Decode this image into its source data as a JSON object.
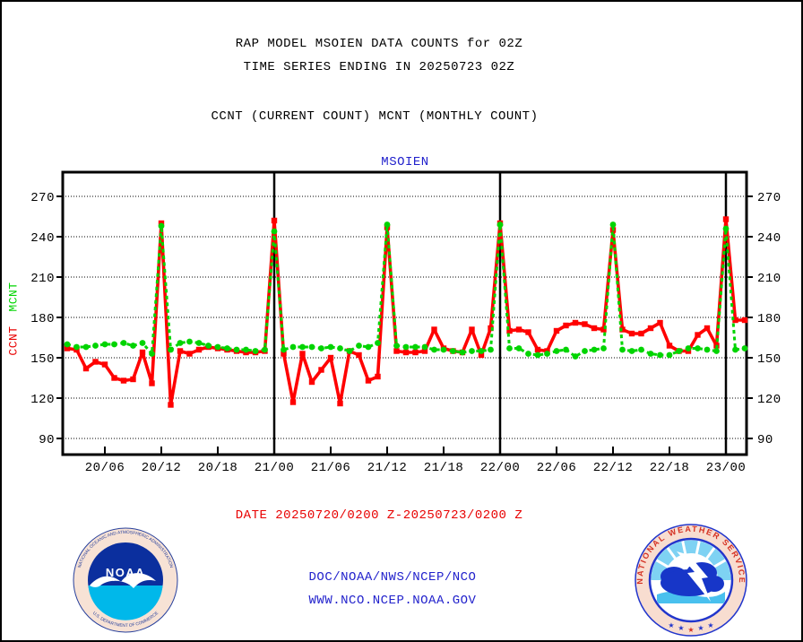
{
  "titles": {
    "line1": "RAP MODEL MSOIEN DATA COUNTS for 02Z",
    "line2": "TIME SERIES ENDING IN 20250723 02Z",
    "counts_caption": "CCNT (CURRENT COUNT) MCNT (MONTHLY COUNT)"
  },
  "axis_labels": {
    "ccnt": "CCNT",
    "mcnt": "MCNT"
  },
  "date_caption": "DATE 20250720/0200 Z-20250723/0200 Z",
  "footer": {
    "org": "DOC/NOAA/NWS/NCEP/NCO",
    "url": "WWW.NCO.NCEP.NOAA.GOV"
  },
  "logos": {
    "noaa": {
      "acronym": "NOAA",
      "ring_top": "NATIONAL OCEANIC AND ATMOSPHERIC ADMINISTRATION",
      "ring_bottom": "U.S. DEPARTMENT OF COMMERCE"
    },
    "nws": {
      "ring": "NATIONAL WEATHER SERVICE"
    }
  },
  "colors": {
    "ccnt_red": "#ff0000",
    "mcnt_green": "#00d400",
    "plot_title_blue": "#2222cc",
    "link_blue": "#2222cc",
    "date_red": "#e80000",
    "axis_black": "#000000"
  },
  "chart_data": {
    "type": "line",
    "title": "MSOIEN",
    "xlabel": "",
    "ylabel_left_series": [
      "CCNT",
      "MCNT"
    ],
    "x_start": "20/02",
    "x_end": "23/02",
    "x_step_hours": 1,
    "x_tick_labels": [
      "20/06",
      "20/12",
      "20/18",
      "21/00",
      "21/06",
      "21/12",
      "21/18",
      "22/00",
      "22/06",
      "22/12",
      "22/18",
      "23/00"
    ],
    "x_tick_hours": [
      4,
      10,
      16,
      22,
      28,
      34,
      40,
      46,
      52,
      58,
      64,
      70
    ],
    "day_line_hours": [
      22,
      46,
      70
    ],
    "y_ticks": [
      270,
      240,
      210,
      180,
      150,
      120,
      90
    ],
    "ylim": [
      78,
      288
    ],
    "grid": "dotted-horizontal",
    "legend_position": "none",
    "series": [
      {
        "name": "CCNT",
        "color": "#ff0000",
        "line_style": "solid",
        "marker": "square",
        "values": [
          157,
          156,
          142,
          147,
          145,
          135,
          133,
          134,
          154,
          131,
          250,
          115,
          155,
          153,
          156,
          158,
          157,
          156,
          155,
          154,
          154,
          155,
          252,
          153,
          117,
          153,
          132,
          141,
          150,
          116,
          155,
          152,
          133,
          136,
          247,
          155,
          154,
          154,
          155,
          171,
          157,
          155,
          154,
          171,
          152,
          172,
          250,
          170,
          171,
          169,
          156,
          155,
          170,
          174,
          176,
          175,
          172,
          171,
          245,
          171,
          168,
          168,
          172,
          176,
          159,
          155,
          155,
          167,
          172,
          159,
          253,
          178,
          178
        ]
      },
      {
        "name": "MCNT",
        "color": "#00d400",
        "line_style": "dashed",
        "marker": "circle",
        "values": [
          160,
          158,
          158,
          159,
          160,
          160,
          161,
          159,
          161,
          153,
          248,
          156,
          161,
          162,
          161,
          159,
          158,
          157,
          156,
          156,
          155,
          156,
          244,
          156,
          158,
          158,
          158,
          157,
          158,
          157,
          155,
          159,
          158,
          161,
          249,
          159,
          158,
          158,
          158,
          156,
          156,
          155,
          154,
          155,
          155,
          156,
          249,
          157,
          157,
          153,
          152,
          153,
          155,
          156,
          151,
          155,
          156,
          157,
          249,
          156,
          155,
          156,
          153,
          152,
          152,
          155,
          157,
          157,
          156,
          155,
          246,
          156,
          157
        ]
      }
    ]
  }
}
